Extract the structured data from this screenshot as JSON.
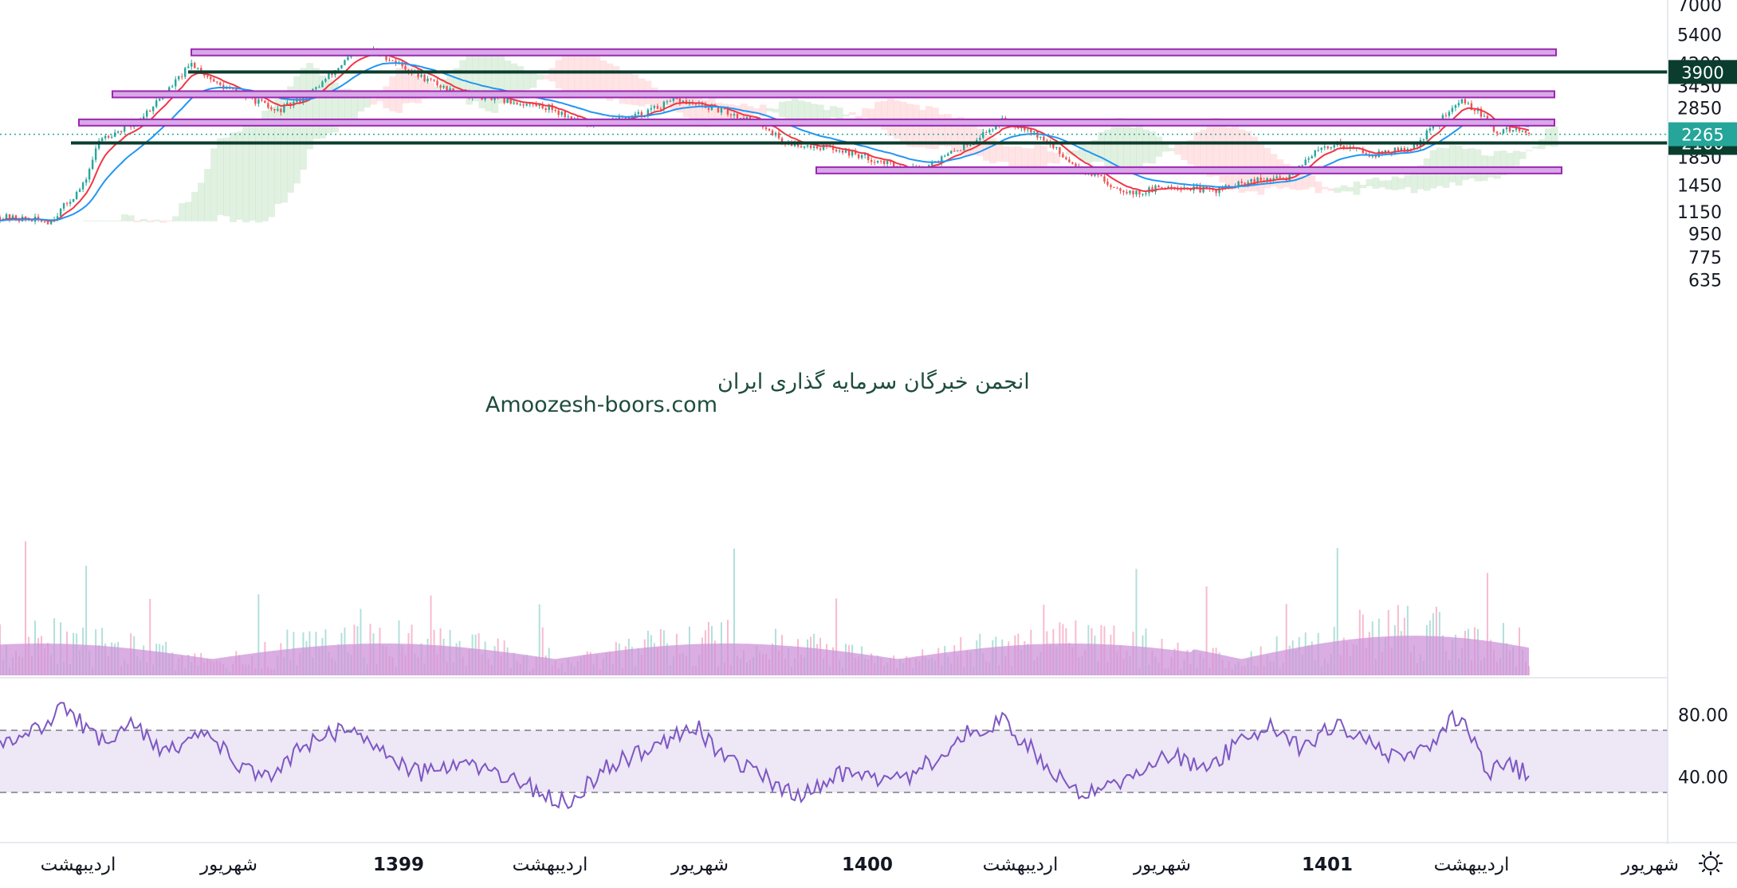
{
  "watermark": {
    "line1": "انجمن خبرگان سرمایه گذاری ایران",
    "line2": "Amoozesh-boors.com"
  },
  "colors": {
    "resistance_zone_fill": "#d8a8e8",
    "resistance_zone_stroke": "#9c27b0",
    "key_level_line": "#0b3d2e",
    "current_price_badge": "#26a69a",
    "candle_up": "#26a69a",
    "candle_down": "#ef5350",
    "ema_fast": "#f23645",
    "ema_slow": "#2196f3",
    "cloud_bull": "#c8e6c9",
    "cloud_bear": "#ffcdd2",
    "volume_ma_fill": "#ce93d8",
    "rsi_line": "#7e57c2",
    "rsi_band": "#ede7f6"
  },
  "chart_data": {
    "type": "candlestick",
    "price_scale": "log",
    "ylim": [
      520,
      7600
    ],
    "price_ticks": [
      7000,
      5400,
      4200,
      3450,
      2850,
      1850,
      1450,
      1150,
      950,
      775,
      635
    ],
    "time_ticks": [
      {
        "label": "اردیبهشت",
        "bold": false
      },
      {
        "label": "شهریور",
        "bold": false
      },
      {
        "label": "1399",
        "bold": true
      },
      {
        "label": "اردیبهشت",
        "bold": false
      },
      {
        "label": "شهریور",
        "bold": false
      },
      {
        "label": "1400",
        "bold": true
      },
      {
        "label": "اردیبهشت",
        "bold": false
      },
      {
        "label": "شهریور",
        "bold": false
      },
      {
        "label": "1401",
        "bold": true
      },
      {
        "label": "اردیبهشت",
        "bold": false
      },
      {
        "label": "شهریور",
        "bold": false
      }
    ],
    "price_path": [
      [
        0,
        1100
      ],
      [
        0.03,
        1060
      ],
      [
        0.05,
        1450
      ],
      [
        0.06,
        2200
      ],
      [
        0.08,
        2450
      ],
      [
        0.1,
        3300
      ],
      [
        0.115,
        4200
      ],
      [
        0.13,
        3500
      ],
      [
        0.155,
        3000
      ],
      [
        0.165,
        2750
      ],
      [
        0.185,
        3200
      ],
      [
        0.21,
        4500
      ],
      [
        0.225,
        4700
      ],
      [
        0.25,
        3800
      ],
      [
        0.27,
        3300
      ],
      [
        0.3,
        3050
      ],
      [
        0.33,
        2850
      ],
      [
        0.35,
        2450
      ],
      [
        0.38,
        2650
      ],
      [
        0.405,
        3050
      ],
      [
        0.43,
        2800
      ],
      [
        0.455,
        2500
      ],
      [
        0.47,
        2100
      ],
      [
        0.5,
        2000
      ],
      [
        0.525,
        1800
      ],
      [
        0.545,
        1650
      ],
      [
        0.565,
        1850
      ],
      [
        0.585,
        2200
      ],
      [
        0.6,
        2550
      ],
      [
        0.615,
        2400
      ],
      [
        0.64,
        1800
      ],
      [
        0.665,
        1450
      ],
      [
        0.68,
        1350
      ],
      [
        0.7,
        1450
      ],
      [
        0.725,
        1380
      ],
      [
        0.75,
        1500
      ],
      [
        0.77,
        1550
      ],
      [
        0.785,
        1900
      ],
      [
        0.8,
        2100
      ],
      [
        0.82,
        1900
      ],
      [
        0.845,
        2000
      ],
      [
        0.86,
        2500
      ],
      [
        0.875,
        3050
      ],
      [
        0.885,
        2750
      ],
      [
        0.895,
        2300
      ],
      [
        0.905,
        2380
      ],
      [
        0.915,
        2265
      ]
    ],
    "resistance_zones": [
      {
        "low": 4600,
        "high": 4760
      },
      {
        "low": 3180,
        "high": 3300
      },
      {
        "low": 2500,
        "high": 2580
      },
      {
        "low": 1640,
        "high": 1700
      }
    ],
    "key_levels": [
      {
        "value": 3900,
        "label": "3900"
      },
      {
        "value": 2100,
        "label": "2100"
      }
    ],
    "current_price": {
      "value": 2265,
      "label": "2265"
    },
    "volume": {
      "note": "histogram with moving-average area"
    },
    "rsi": {
      "ylim": [
        0,
        100
      ],
      "ticks": [
        "80.00",
        "40.00"
      ],
      "upper_band": 70,
      "lower_band": 30,
      "path": [
        [
          0,
          58
        ],
        [
          0.02,
          70
        ],
        [
          0.04,
          85
        ],
        [
          0.06,
          62
        ],
        [
          0.08,
          75
        ],
        [
          0.1,
          55
        ],
        [
          0.12,
          72
        ],
        [
          0.14,
          50
        ],
        [
          0.16,
          38
        ],
        [
          0.18,
          60
        ],
        [
          0.21,
          72
        ],
        [
          0.23,
          55
        ],
        [
          0.25,
          42
        ],
        [
          0.28,
          48
        ],
        [
          0.3,
          40
        ],
        [
          0.32,
          32
        ],
        [
          0.34,
          22
        ],
        [
          0.36,
          44
        ],
        [
          0.38,
          55
        ],
        [
          0.4,
          62
        ],
        [
          0.415,
          75
        ],
        [
          0.43,
          55
        ],
        [
          0.46,
          38
        ],
        [
          0.48,
          28
        ],
        [
          0.5,
          42
        ],
        [
          0.52,
          40
        ],
        [
          0.54,
          38
        ],
        [
          0.56,
          52
        ],
        [
          0.58,
          70
        ],
        [
          0.6,
          76
        ],
        [
          0.62,
          55
        ],
        [
          0.64,
          32
        ],
        [
          0.66,
          30
        ],
        [
          0.68,
          42
        ],
        [
          0.7,
          55
        ],
        [
          0.72,
          45
        ],
        [
          0.74,
          60
        ],
        [
          0.76,
          72
        ],
        [
          0.78,
          58
        ],
        [
          0.8,
          75
        ],
        [
          0.82,
          62
        ],
        [
          0.84,
          50
        ],
        [
          0.86,
          62
        ],
        [
          0.87,
          78
        ],
        [
          0.88,
          68
        ],
        [
          0.89,
          40
        ],
        [
          0.9,
          48
        ],
        [
          0.915,
          42
        ]
      ]
    }
  }
}
